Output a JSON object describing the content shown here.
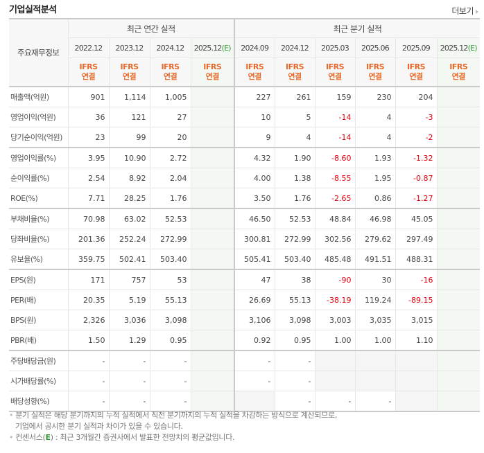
{
  "header": {
    "title": "기업실적분석",
    "more_label": "더보기"
  },
  "table": {
    "label_header": "주요재무정보",
    "groups": {
      "annual": "최근 연간 실적",
      "quarterly": "최근 분기 실적"
    },
    "periods": [
      {
        "label": "2022.12",
        "estimate": false
      },
      {
        "label": "2023.12",
        "estimate": false
      },
      {
        "label": "2024.12",
        "estimate": false
      },
      {
        "label": "2025.12",
        "estimate": true,
        "suffix": "(E)"
      },
      {
        "label": "2024.09",
        "estimate": false
      },
      {
        "label": "2024.12",
        "estimate": false
      },
      {
        "label": "2025.03",
        "estimate": false
      },
      {
        "label": "2025.06",
        "estimate": false
      },
      {
        "label": "2025.09",
        "estimate": false
      },
      {
        "label": "2025.12",
        "estimate": true,
        "suffix": "(E)"
      }
    ],
    "ifrs": {
      "line1": "IFRS",
      "line2": "연결"
    },
    "rows": [
      {
        "label": "매출액(억원)",
        "values": [
          "901",
          "1,114",
          "1,005",
          "",
          "227",
          "261",
          "159",
          "230",
          "204",
          ""
        ]
      },
      {
        "label": "영업이익(억원)",
        "values": [
          "36",
          "121",
          "27",
          "",
          "10",
          "5",
          "-14",
          "4",
          "-3",
          ""
        ]
      },
      {
        "label": "당기순이익(억원)",
        "values": [
          "23",
          "99",
          "20",
          "",
          "9",
          "4",
          "-14",
          "4",
          "-2",
          ""
        ]
      },
      {
        "label": "영업이익률(%)",
        "values": [
          "3.95",
          "10.90",
          "2.72",
          "",
          "4.32",
          "1.90",
          "-8.60",
          "1.93",
          "-1.32",
          ""
        ]
      },
      {
        "label": "순이익률(%)",
        "values": [
          "2.54",
          "8.92",
          "2.04",
          "",
          "4.00",
          "1.38",
          "-8.55",
          "1.95",
          "-0.87",
          ""
        ]
      },
      {
        "label": "ROE(%)",
        "values": [
          "7.71",
          "28.25",
          "1.76",
          "",
          "3.50",
          "1.76",
          "-2.65",
          "0.86",
          "-1.27",
          ""
        ]
      },
      {
        "label": "부채비율(%)",
        "values": [
          "70.98",
          "63.02",
          "52.53",
          "",
          "46.50",
          "52.53",
          "48.84",
          "46.98",
          "45.05",
          ""
        ]
      },
      {
        "label": "당좌비율(%)",
        "values": [
          "201.36",
          "252.24",
          "272.99",
          "",
          "300.81",
          "272.99",
          "302.56",
          "279.62",
          "297.49",
          ""
        ]
      },
      {
        "label": "유보율(%)",
        "values": [
          "359.75",
          "502.41",
          "503.40",
          "",
          "505.41",
          "503.40",
          "485.48",
          "491.51",
          "488.31",
          ""
        ]
      },
      {
        "label": "EPS(원)",
        "values": [
          "171",
          "757",
          "53",
          "",
          "47",
          "38",
          "-90",
          "30",
          "-16",
          ""
        ]
      },
      {
        "label": "PER(배)",
        "values": [
          "20.35",
          "5.19",
          "55.13",
          "",
          "26.69",
          "55.13",
          "-38.19",
          "119.24",
          "-89.15",
          ""
        ]
      },
      {
        "label": "BPS(원)",
        "values": [
          "2,326",
          "3,036",
          "3,098",
          "",
          "3,106",
          "3,098",
          "3,003",
          "3,035",
          "3,015",
          ""
        ]
      },
      {
        "label": "PBR(배)",
        "values": [
          "1.50",
          "1.29",
          "0.95",
          "",
          "0.92",
          "0.95",
          "1.00",
          "1.00",
          "1.10",
          ""
        ]
      },
      {
        "label": "주당배당금(원)",
        "values": [
          "-",
          "-",
          "-",
          "",
          "-",
          "-",
          "",
          "",
          "",
          ""
        ]
      },
      {
        "label": "시가배당률(%)",
        "values": [
          "-",
          "-",
          "-",
          "",
          "-",
          "-",
          "",
          "",
          "",
          ""
        ]
      },
      {
        "label": "배당성향(%)",
        "values": [
          "-",
          "-",
          "-",
          "",
          "",
          "-",
          "-",
          "-",
          "",
          ""
        ]
      }
    ]
  },
  "notes": {
    "line1": "분기 실적은 해당 분기까지의 누적 실적에서 직전 분기까지의 누적 실적을 차감하는 방식으로 계산되므로,",
    "line2": "기업에서 공시한 분기 실적과 차이가 있을 수 있습니다.",
    "line3_prefix": "컨센서스(",
    "line3_e": "E",
    "line3_suffix": ") : 최근 3개월간 증권사에서 발표한 전망치의 평균값입니다."
  },
  "colors": {
    "ifrs": "#e8682a",
    "negative": "#e1000c",
    "estimate_bg": "#f3f8f3",
    "estimate_mark": "#3a9a3a"
  }
}
